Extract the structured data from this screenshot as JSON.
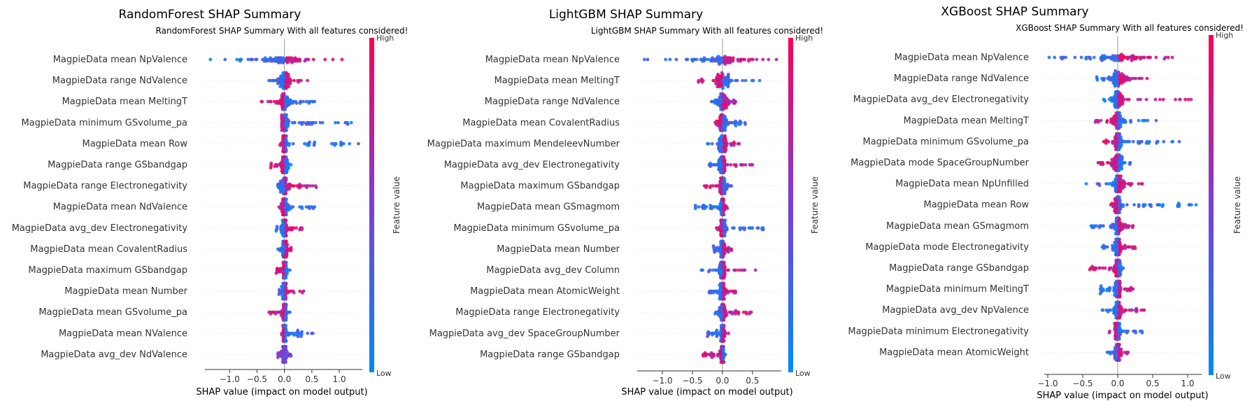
{
  "colors": {
    "low": "#008afb",
    "high": "#ff0052",
    "zero_line": "#999999",
    "axis": "#333333"
  },
  "chart_data": [
    {
      "type": "scatter",
      "title": "RandomForest SHAP Summary",
      "subtitle": "RandomForest SHAP Summary With all features considered!",
      "xlabel": "SHAP value (impact on model output)",
      "xticks": [
        -1.0,
        -0.5,
        0.0,
        0.5,
        1.0
      ],
      "xtick_labels": [
        "−1.0",
        "−0.5",
        "0.0",
        "0.5",
        "1.0"
      ],
      "xlim": [
        -1.45,
        1.42
      ],
      "colorbar": {
        "title": "Feature value",
        "high": "High",
        "low": "Low"
      },
      "features": [
        {
          "name": "MagpieData mean NpValence",
          "min": -1.35,
          "max": 1.05,
          "dir": 1,
          "spread": 0.55
        },
        {
          "name": "MagpieData range NdValence",
          "min": -0.28,
          "max": 0.42,
          "dir": 1,
          "spread": 0.2
        },
        {
          "name": "MagpieData mean MeltingT",
          "min": -0.42,
          "max": 0.55,
          "dir": -1,
          "spread": 0.15
        },
        {
          "name": "MagpieData minimum GSvolume_pa",
          "min": -0.05,
          "max": 1.22,
          "dir": -1,
          "spread": 0.1
        },
        {
          "name": "MagpieData mean Row",
          "min": -0.08,
          "max": 1.35,
          "dir": -1,
          "spread": 0.08
        },
        {
          "name": "MagpieData range GSbandgap",
          "min": -0.25,
          "max": 0.12,
          "dir": -1,
          "spread": 0.08
        },
        {
          "name": "MagpieData range Electronegativity",
          "min": -0.12,
          "max": 0.58,
          "dir": 1,
          "spread": 0.12
        },
        {
          "name": "MagpieData mean NdValence",
          "min": -0.1,
          "max": 0.55,
          "dir": -1,
          "spread": 0.08
        },
        {
          "name": "MagpieData avg_dev Electronegativity",
          "min": -0.15,
          "max": 0.32,
          "dir": 1,
          "spread": 0.08
        },
        {
          "name": "MagpieData mean CovalentRadius",
          "min": -0.12,
          "max": 0.12,
          "dir": 1,
          "spread": 0.06
        },
        {
          "name": "MagpieData maximum GSbandgap",
          "min": -0.15,
          "max": 0.1,
          "dir": -1,
          "spread": 0.05
        },
        {
          "name": "MagpieData mean Number",
          "min": -0.1,
          "max": 0.35,
          "dir": 1,
          "spread": 0.06
        },
        {
          "name": "MagpieData mean GSvolume_pa",
          "min": -0.28,
          "max": 0.1,
          "dir": -1,
          "spread": 0.06
        },
        {
          "name": "MagpieData mean NValence",
          "min": -0.05,
          "max": 0.52,
          "dir": -1,
          "spread": 0.05
        },
        {
          "name": "MagpieData avg_dev NdValence",
          "min": -0.12,
          "max": 0.12,
          "dir": 0,
          "spread": 0.05
        }
      ]
    },
    {
      "type": "scatter",
      "title": "LightGBM SHAP Summary",
      "subtitle": "LightGBM SHAP Summary With all features considered!",
      "xlabel": "SHAP value (impact on model output)",
      "xticks": [
        -1.0,
        -0.5,
        0.0,
        0.5
      ],
      "xtick_labels": [
        "−1.0",
        "−0.5",
        "0.0",
        "0.5"
      ],
      "xlim": [
        -1.42,
        0.98
      ],
      "colorbar": {
        "title": "Feature value",
        "high": "High",
        "low": "Low"
      },
      "features": [
        {
          "name": "MagpieData mean NpValence",
          "min": -1.3,
          "max": 0.9,
          "dir": 1,
          "spread": 0.55
        },
        {
          "name": "MagpieData mean MeltingT",
          "min": -0.4,
          "max": 0.62,
          "dir": -1,
          "spread": 0.18
        },
        {
          "name": "MagpieData range NdValence",
          "min": -0.18,
          "max": 0.22,
          "dir": 1,
          "spread": 0.15
        },
        {
          "name": "MagpieData mean CovalentRadius",
          "min": -0.12,
          "max": 0.38,
          "dir": -1,
          "spread": 0.1
        },
        {
          "name": "MagpieData maximum MendeleevNumber",
          "min": -0.25,
          "max": 0.28,
          "dir": 1,
          "spread": 0.1
        },
        {
          "name": "MagpieData avg_dev Electronegativity",
          "min": -0.22,
          "max": 0.5,
          "dir": 1,
          "spread": 0.1
        },
        {
          "name": "MagpieData maximum GSbandgap",
          "min": -0.3,
          "max": 0.15,
          "dir": -1,
          "spread": 0.08
        },
        {
          "name": "MagpieData mean GSmagmom",
          "min": -0.45,
          "max": 0.08,
          "dir": 1,
          "spread": 0.06
        },
        {
          "name": "MagpieData minimum GSvolume_pa",
          "min": -0.1,
          "max": 0.68,
          "dir": -1,
          "spread": 0.08
        },
        {
          "name": "MagpieData mean Number",
          "min": -0.15,
          "max": 0.15,
          "dir": 1,
          "spread": 0.06
        },
        {
          "name": "MagpieData avg_dev Column",
          "min": -0.35,
          "max": 0.55,
          "dir": 1,
          "spread": 0.08
        },
        {
          "name": "MagpieData mean AtomicWeight",
          "min": -0.22,
          "max": 0.22,
          "dir": 1,
          "spread": 0.07
        },
        {
          "name": "MagpieData range Electronegativity",
          "min": -0.12,
          "max": 0.48,
          "dir": 1,
          "spread": 0.08
        },
        {
          "name": "MagpieData avg_dev SpaceGroupNumber",
          "min": -0.25,
          "max": 0.1,
          "dir": 1,
          "spread": 0.05
        },
        {
          "name": "MagpieData range GSbandgap",
          "min": -0.32,
          "max": 0.05,
          "dir": -1,
          "spread": 0.05
        }
      ]
    },
    {
      "type": "scatter",
      "title": "XGBoost SHAP Summary",
      "subtitle": "XGBoost SHAP Summary With all features considered!",
      "xlabel": "SHAP value (impact on model output)",
      "xticks": [
        -1.0,
        -0.5,
        0.0,
        0.5,
        1.0
      ],
      "xtick_labels": [
        "−1.0",
        "−0.5",
        "0.0",
        "0.5",
        "1.0"
      ],
      "xlim": [
        -1.05,
        1.2
      ],
      "colorbar": {
        "title": "Feature value",
        "high": "High",
        "low": "Low"
      },
      "features": [
        {
          "name": "MagpieData mean NpValence",
          "min": -0.98,
          "max": 0.78,
          "dir": 1,
          "spread": 0.5
        },
        {
          "name": "MagpieData range NdValence",
          "min": -0.3,
          "max": 0.42,
          "dir": 1,
          "spread": 0.18
        },
        {
          "name": "MagpieData avg_dev Electronegativity",
          "min": -0.2,
          "max": 1.05,
          "dir": 1,
          "spread": 0.12
        },
        {
          "name": "MagpieData mean MeltingT",
          "min": -0.32,
          "max": 0.55,
          "dir": -1,
          "spread": 0.12
        },
        {
          "name": "MagpieData minimum GSvolume_pa",
          "min": -0.2,
          "max": 0.88,
          "dir": -1,
          "spread": 0.1
        },
        {
          "name": "MagpieData mode SpaceGroupNumber",
          "min": -0.28,
          "max": 0.18,
          "dir": -1,
          "spread": 0.1
        },
        {
          "name": "MagpieData mean NpUnfilled",
          "min": -0.45,
          "max": 0.35,
          "dir": 1,
          "spread": 0.1
        },
        {
          "name": "MagpieData mean Row",
          "min": -0.1,
          "max": 1.12,
          "dir": -1,
          "spread": 0.08
        },
        {
          "name": "MagpieData mean GSmagmom",
          "min": -0.38,
          "max": 0.22,
          "dir": 1,
          "spread": 0.08
        },
        {
          "name": "MagpieData mode Electronegativity",
          "min": -0.22,
          "max": 0.25,
          "dir": 1,
          "spread": 0.08
        },
        {
          "name": "MagpieData range GSbandgap",
          "min": -0.4,
          "max": 0.08,
          "dir": -1,
          "spread": 0.07
        },
        {
          "name": "MagpieData minimum MeltingT",
          "min": -0.25,
          "max": 0.22,
          "dir": 1,
          "spread": 0.07
        },
        {
          "name": "MagpieData avg_dev NpValence",
          "min": -0.22,
          "max": 0.38,
          "dir": 1,
          "spread": 0.07
        },
        {
          "name": "MagpieData minimum Electronegativity",
          "min": -0.12,
          "max": 0.35,
          "dir": -1,
          "spread": 0.06
        },
        {
          "name": "MagpieData mean AtomicWeight",
          "min": -0.15,
          "max": 0.15,
          "dir": 1,
          "spread": 0.06
        }
      ]
    }
  ]
}
